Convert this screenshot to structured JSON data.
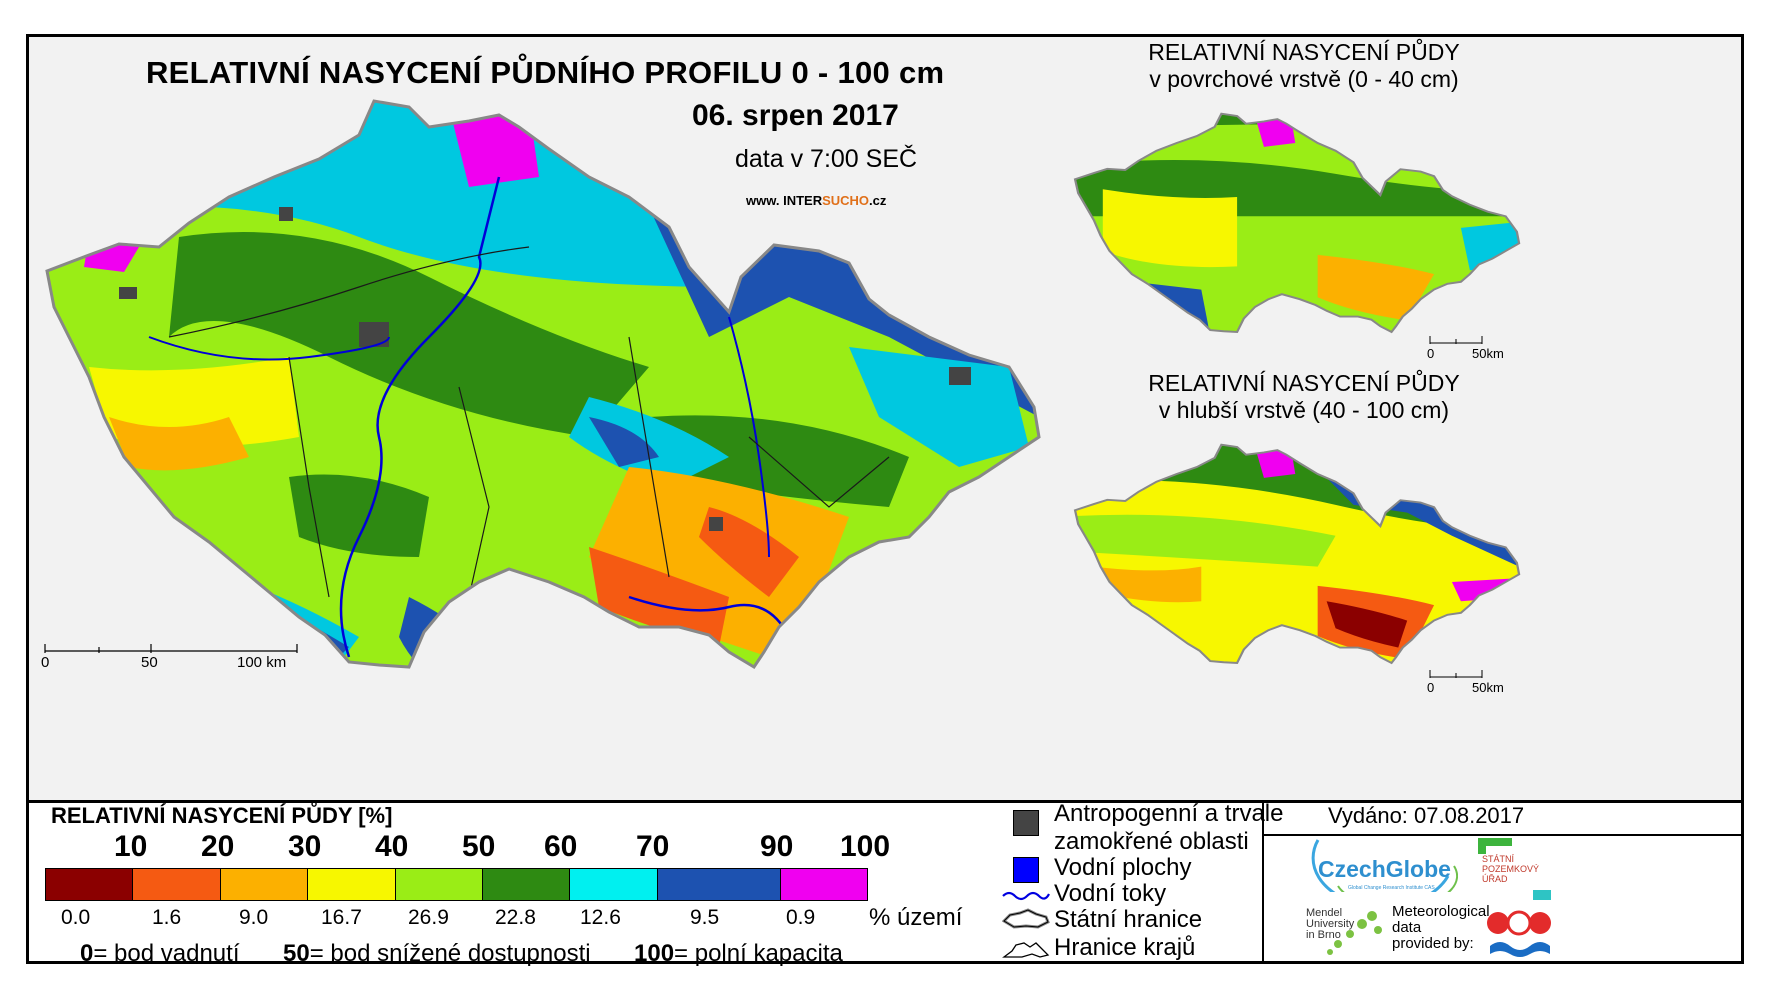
{
  "map": {
    "title": "RELATIVNÍ NASYCENÍ PŮDNÍHO PROFILU 0 - 100 cm",
    "date": "06. srpen 2017",
    "data_time": "data v 7:00 SEČ",
    "web_prefix": "www. INTER",
    "web_sucho": "SUCHO",
    "web_suffix": ".cz",
    "scale": {
      "s0": "0",
      "s50": "50",
      "s100": "100 km"
    }
  },
  "inset_top": {
    "title_line1": "RELATIVNÍ NASYCENÍ PŮDY",
    "title_line2": "v povrchové vrstvě (0 - 40 cm)",
    "scale0": "0",
    "scale50": "50km"
  },
  "inset_bottom": {
    "title_line1": "RELATIVNÍ NASYCENÍ PŮDY",
    "title_line2": "v hlubší vrstvě (40 - 100 cm)",
    "scale0": "0",
    "scale50": "50km"
  },
  "legend": {
    "title": "RELATIVNÍ NASYCENÍ PŮDY [%]",
    "thresholds": [
      "10",
      "20",
      "30",
      "40",
      "50",
      "60",
      "70",
      "90",
      "100"
    ],
    "colors": [
      "#8b0000",
      "#f55a12",
      "#fcb000",
      "#f7f700",
      "#9aed16",
      "#2e8a12",
      "#00f0f0",
      "#1d52b0",
      "#f000f0"
    ],
    "percentages": [
      "0.0",
      "1.6",
      "9.0",
      "16.7",
      "26.9",
      "22.8",
      "12.6",
      "9.5",
      "0.9"
    ],
    "pct_unit": "% území",
    "note_0_num": "0",
    "note_0_text": "= bod vadnutí",
    "note_50_num": "50",
    "note_50_text": "= bod snížené dostupnosti",
    "note_100_num": "100",
    "note_100_text": "= polní kapacita"
  },
  "symbols": {
    "anthropogenic_line1": "Antropogenní a trvale",
    "anthropogenic_line2": "zamokřené oblasti",
    "water_areas": "Vodní plochy",
    "water_streams": "Vodní toky",
    "state_border": "Státní hranice",
    "region_border": "Hranice krajů"
  },
  "credits": {
    "issued": "Vydáno: 07.08.2017",
    "czechglobe": "CzechGlobe",
    "czechglobe_sub": "Global Change Research Institute CAS",
    "spu_line1": "STÁTNÍ",
    "spu_line2": "POZEMKOVÝ",
    "spu_line3": "ÚŘAD",
    "mendel_line1": "Mendel",
    "mendel_line2": "University",
    "mendel_line3": "in Brno",
    "met_line1": "Meteorological",
    "met_line2": "data",
    "met_line3": "provided by:"
  }
}
